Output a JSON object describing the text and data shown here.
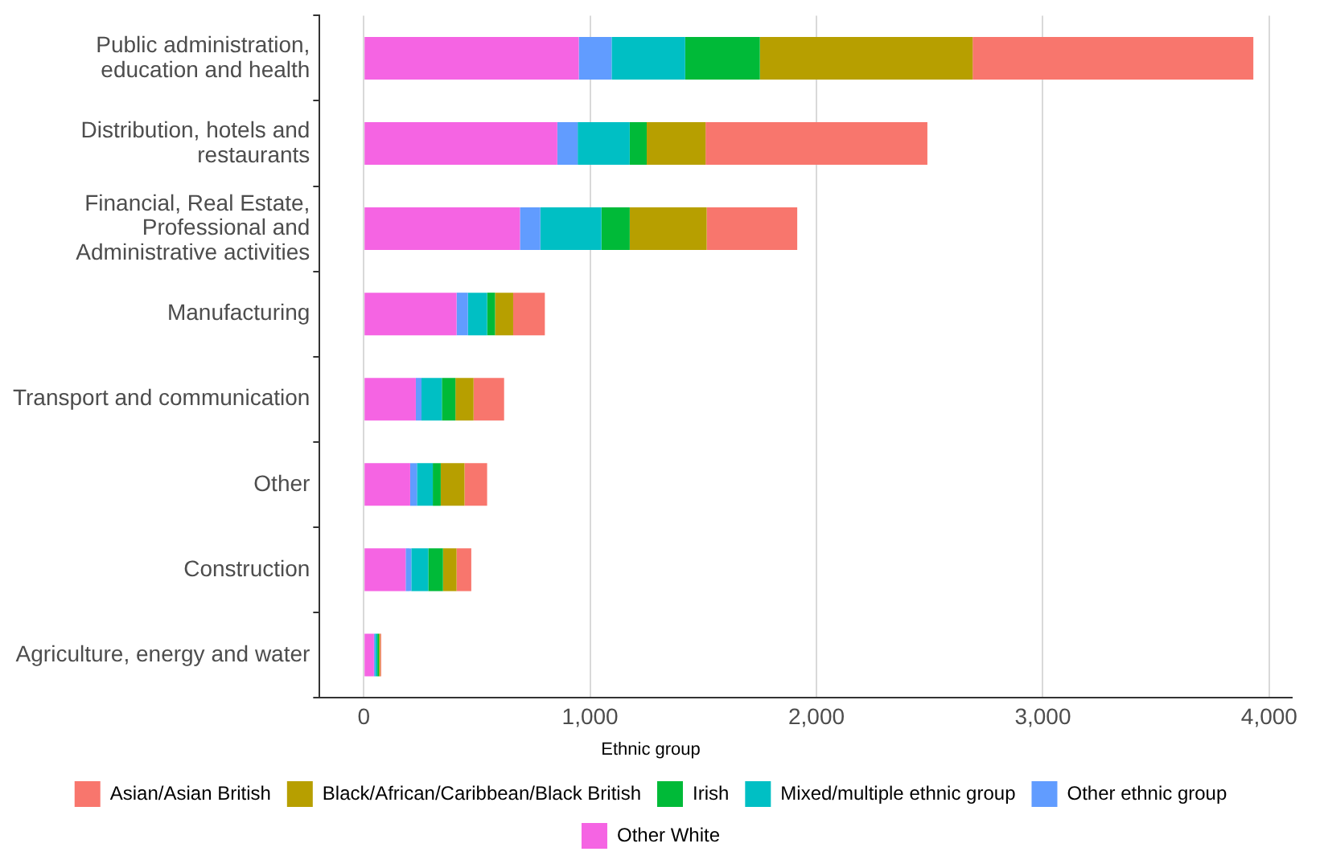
{
  "chart_data": {
    "type": "bar",
    "orientation": "horizontal",
    "stacked": true,
    "categories": [
      "Public administration,\neducation and health",
      "Distribution, hotels and\nrestaurants",
      "Financial, Real Estate,\nProfessional and\nAdministrative activities",
      "Manufacturing",
      "Transport and communication",
      "Other",
      "Construction",
      "Agriculture, energy and water"
    ],
    "series": [
      {
        "name": "Other White",
        "color": "#f564e3",
        "values": [
          950,
          855,
          690,
          410,
          230,
          205,
          185,
          45
        ]
      },
      {
        "name": "Other ethnic group",
        "color": "#619cff",
        "values": [
          145,
          90,
          90,
          50,
          25,
          30,
          25,
          5
        ]
      },
      {
        "name": "Mixed/multiple ethnic group",
        "color": "#00bfc4",
        "values": [
          325,
          230,
          270,
          85,
          90,
          70,
          75,
          10
        ]
      },
      {
        "name": "Irish",
        "color": "#00ba38",
        "values": [
          330,
          75,
          125,
          35,
          60,
          35,
          65,
          7
        ]
      },
      {
        "name": "Black/African/Caribbean/Black British",
        "color": "#b79f00",
        "values": [
          940,
          260,
          340,
          80,
          80,
          105,
          60,
          5
        ]
      },
      {
        "name": "Asian/Asian British",
        "color": "#f8766d",
        "values": [
          1240,
          980,
          400,
          140,
          135,
          100,
          65,
          5
        ]
      }
    ],
    "xlim": [
      -195,
      4100
    ],
    "xticks": [
      0,
      {
        "value": 1000,
        "label": "1,000"
      },
      {
        "value": 2000,
        "label": "2,000"
      },
      {
        "value": 3000,
        "label": "3,000"
      },
      {
        "value": 4000,
        "label": "4,000"
      }
    ],
    "grid": "x",
    "legend": "bottom",
    "legend_title": "Ethnic group"
  }
}
